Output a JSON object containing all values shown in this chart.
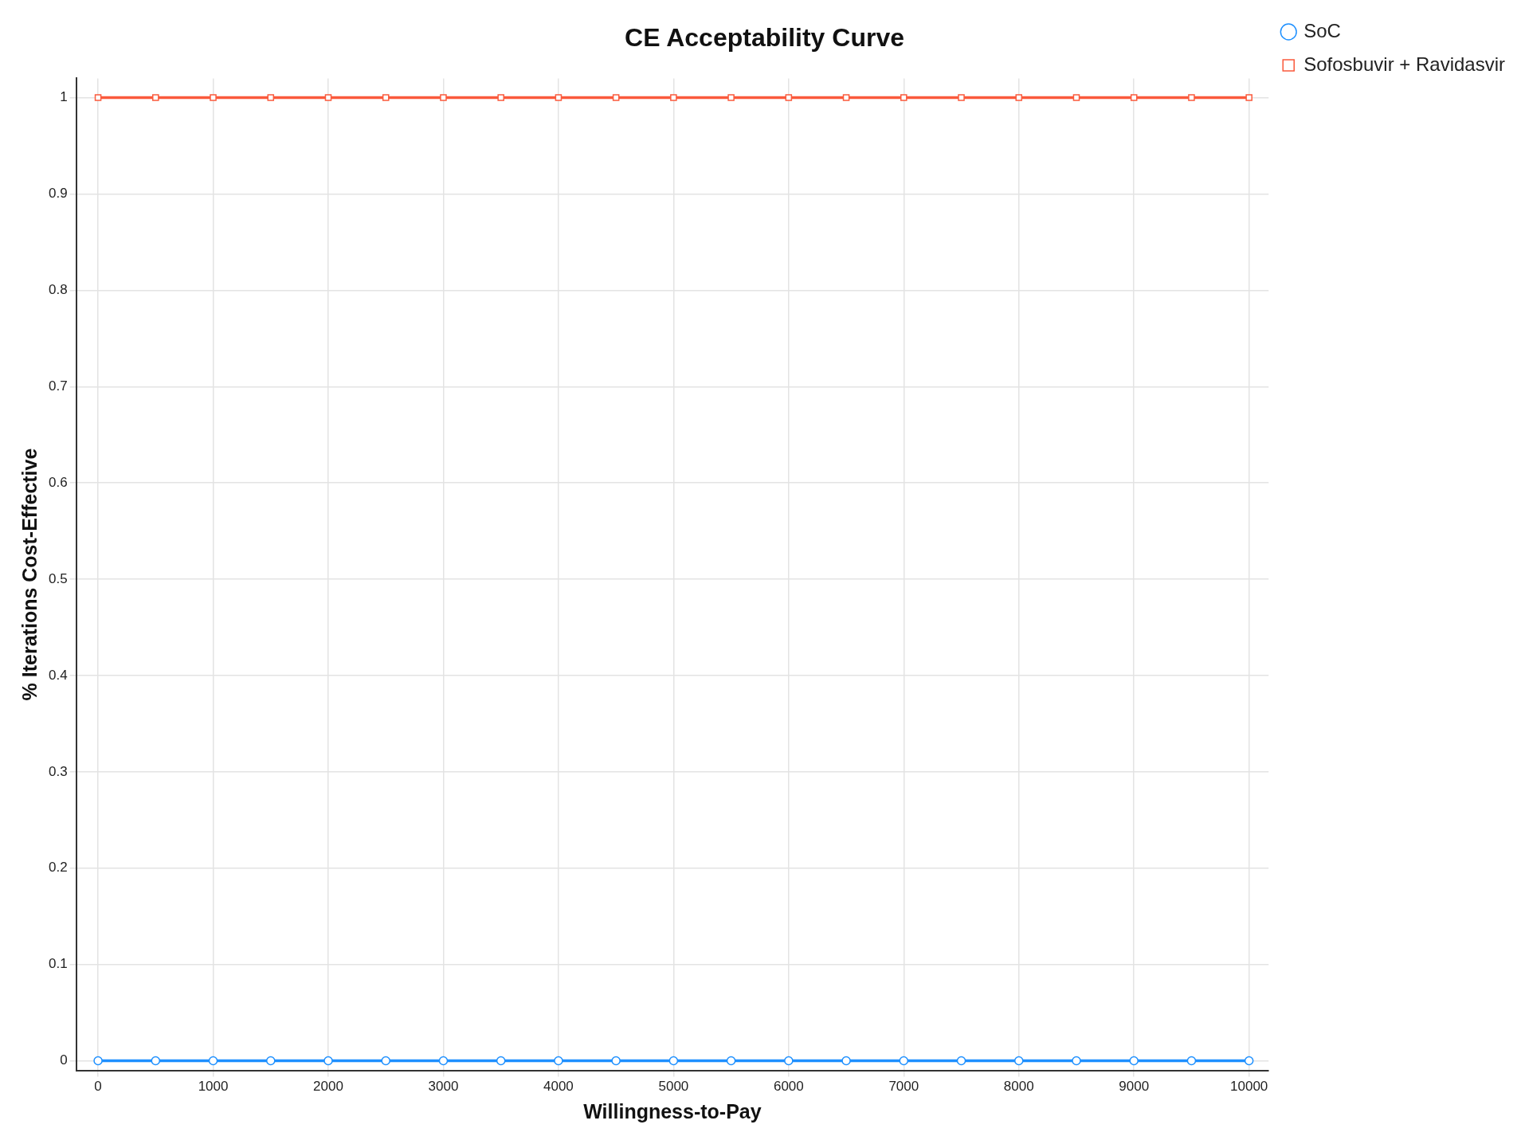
{
  "chart_data": {
    "type": "line",
    "title": "CE Acceptability Curve",
    "xlabel": "Willingness-to-Pay",
    "ylabel": "% Iterations Cost-Effective",
    "x": [
      0,
      500,
      1000,
      1500,
      2000,
      2500,
      3000,
      3500,
      4000,
      4500,
      5000,
      5500,
      6000,
      6500,
      7000,
      7500,
      8000,
      8500,
      9000,
      9500,
      10000
    ],
    "series": [
      {
        "name": "SoC",
        "color": "#1e90ff",
        "marker": "circle",
        "values": [
          0,
          0,
          0,
          0,
          0,
          0,
          0,
          0,
          0,
          0,
          0,
          0,
          0,
          0,
          0,
          0,
          0,
          0,
          0,
          0,
          0
        ]
      },
      {
        "name": "Sofosbuvir + Ravidasvir",
        "color": "#fa5a3c",
        "marker": "square",
        "values": [
          1,
          1,
          1,
          1,
          1,
          1,
          1,
          1,
          1,
          1,
          1,
          1,
          1,
          1,
          1,
          1,
          1,
          1,
          1,
          1,
          1
        ]
      }
    ],
    "xlim": [
      -190,
      10170
    ],
    "ylim": [
      -0.01,
      1.02
    ],
    "xticks": [
      0,
      1000,
      2000,
      3000,
      4000,
      5000,
      6000,
      7000,
      8000,
      9000,
      10000
    ],
    "yticks": [
      0,
      0.1,
      0.2,
      0.3,
      0.4,
      0.5,
      0.6,
      0.7,
      0.8,
      0.9,
      1
    ],
    "grid": true,
    "legend": "top right",
    "line_style": "solid"
  }
}
